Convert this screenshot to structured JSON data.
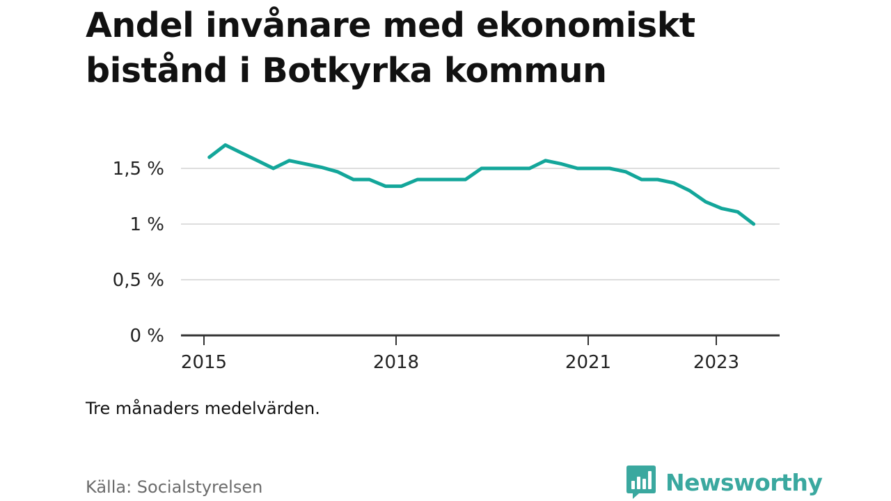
{
  "title": "Andel invånare med ekonomiskt bistånd i Botkyrka kommun",
  "note": "Tre månaders medelvärden.",
  "source": "Källa: Socialstyrelsen",
  "brand": {
    "name": "Newsworthy",
    "color": "#3aa89f",
    "icon": "newsworthy-logo-icon"
  },
  "colors": {
    "line": "#13a69a",
    "grid": "#dddddd",
    "axis": "#333333",
    "text": "#111111"
  },
  "chart_data": {
    "type": "line",
    "title": "Andel invånare med ekonomiskt bistånd i Botkyrka kommun",
    "xlabel": "",
    "ylabel": "",
    "ylim": [
      0,
      1.5
    ],
    "y_ticks": [
      {
        "value": 0,
        "label": "0 %"
      },
      {
        "value": 0.5,
        "label": "0,5 %"
      },
      {
        "value": 1,
        "label": "1 %"
      },
      {
        "value": 1.5,
        "label": "1,5 %"
      }
    ],
    "x_ticks": [
      {
        "value": "2015-01",
        "label": "2015"
      },
      {
        "value": "2018-01",
        "label": "2018"
      },
      {
        "value": "2021-01",
        "label": "2021"
      },
      {
        "value": "2023-01",
        "label": "2023"
      }
    ],
    "grid": true,
    "legend": "none",
    "series": [
      {
        "x": [
          "2015-02",
          "2015-05",
          "2015-08",
          "2015-11",
          "2016-02",
          "2016-05",
          "2016-08",
          "2016-11",
          "2017-02",
          "2017-05",
          "2017-08",
          "2017-11",
          "2018-02",
          "2018-05",
          "2018-08",
          "2018-11",
          "2019-02",
          "2019-05",
          "2019-08",
          "2019-11",
          "2020-02",
          "2020-05",
          "2020-08",
          "2020-11",
          "2021-02",
          "2021-05",
          "2021-08",
          "2021-11",
          "2022-02",
          "2022-05",
          "2022-08",
          "2022-11",
          "2023-02",
          "2023-05",
          "2023-08"
        ],
        "values": [
          1.6,
          1.71,
          1.64,
          1.57,
          1.5,
          1.57,
          1.54,
          1.51,
          1.47,
          1.4,
          1.4,
          1.34,
          1.34,
          1.4,
          1.4,
          1.4,
          1.4,
          1.5,
          1.5,
          1.5,
          1.5,
          1.57,
          1.54,
          1.5,
          1.5,
          1.5,
          1.47,
          1.4,
          1.4,
          1.37,
          1.3,
          1.2,
          1.14,
          1.11,
          1.0
        ]
      }
    ]
  }
}
